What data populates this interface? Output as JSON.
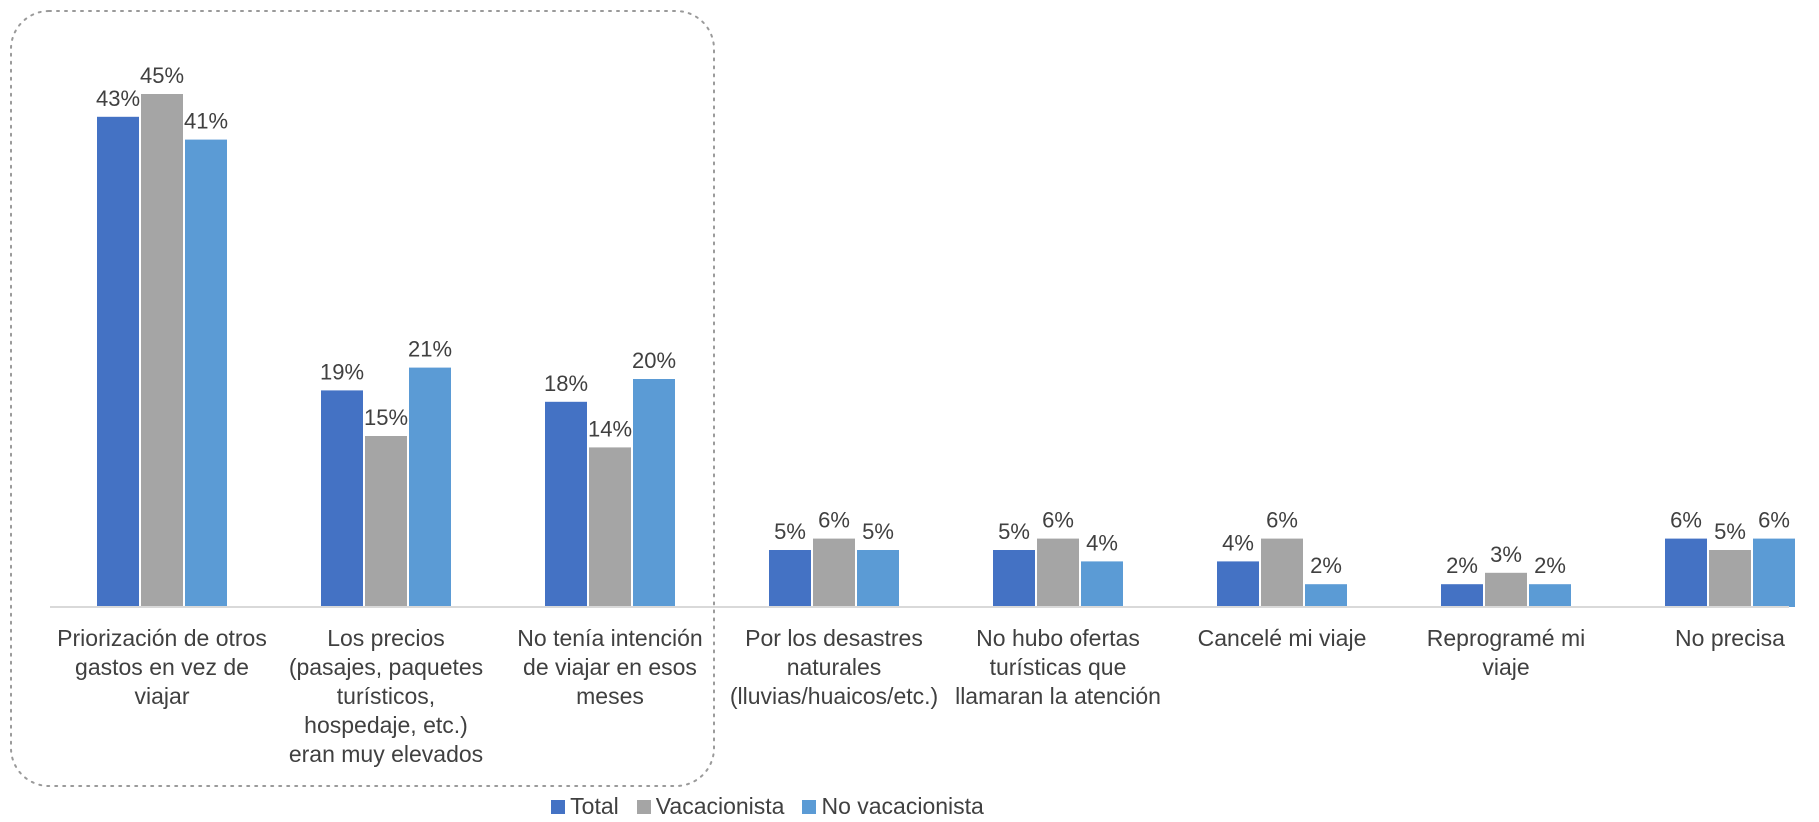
{
  "chart_data": {
    "type": "bar",
    "categories": [
      "Priorización de otros gastos en vez de viajar",
      "Los precios (pasajes, paquetes turísticos, hospedaje, etc.) eran muy elevados",
      "No tenía intención de viajar en esos meses",
      "Por los desastres naturales (lluvias/huaicos/etc.)",
      "No hubo ofertas turísticas que llamaran la atención",
      "Cancelé mi viaje",
      "Reprogramé mi viaje",
      "No precisa"
    ],
    "category_lines": [
      [
        "Priorización de otros",
        "gastos en vez de",
        "viajar"
      ],
      [
        "Los precios",
        "(pasajes, paquetes",
        "turísticos,",
        "hospedaje, etc.)",
        "eran muy elevados"
      ],
      [
        "No tenía intención",
        "de viajar en esos",
        "meses"
      ],
      [
        "Por los desastres",
        "naturales",
        "(lluvias/huaicos/etc.)"
      ],
      [
        "No hubo ofertas",
        "turísticas que",
        "llamaran la atención"
      ],
      [
        "Cancelé mi viaje"
      ],
      [
        "Reprogramé mi viaje"
      ],
      [
        "No precisa"
      ]
    ],
    "series": [
      {
        "name": "Total",
        "color": "#4472C4",
        "values": [
          43,
          19,
          18,
          5,
          5,
          4,
          2,
          6
        ],
        "labels": [
          "43%",
          "19%",
          "18%",
          "5%",
          "5%",
          "4%",
          "2%",
          "6%"
        ]
      },
      {
        "name": "Vacacionista",
        "color": "#A5A5A5",
        "values": [
          45,
          15,
          14,
          6,
          6,
          6,
          3,
          5
        ],
        "labels": [
          "45%",
          "15%",
          "14%",
          "6%",
          "6%",
          "6%",
          "3%",
          "5%"
        ]
      },
      {
        "name": "No vacacionista",
        "color": "#5B9BD5",
        "values": [
          41,
          21,
          20,
          5,
          4,
          2,
          2,
          6
        ],
        "labels": [
          "41%",
          "21%",
          "20%",
          "5%",
          "4%",
          "2%",
          "2%",
          "6%"
        ]
      }
    ],
    "ylim": [
      0,
      45
    ],
    "grid": false,
    "legend_position": "bottom",
    "data_labels": true,
    "highlight_categories": [
      0,
      1,
      2
    ]
  }
}
